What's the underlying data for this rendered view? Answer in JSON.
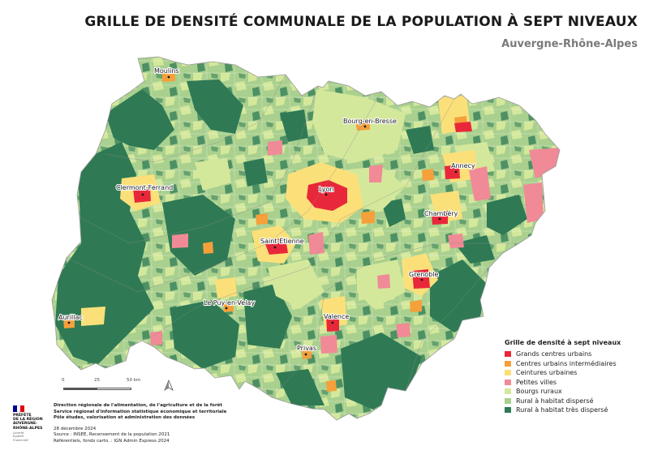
{
  "title": "GRILLE DE DENSITÉ COMMUNALE DE LA POPULATION À SEPT NIVEAUX",
  "subtitle": "Auvergne-Rhône-Alpes",
  "cities": {
    "moulins": "Moulins",
    "bourg": "Bourg-en-Bresse",
    "annecy": "Annecy",
    "clermont": "Clermont-Ferrand",
    "lyon": "Lyon",
    "chambery": "Chambéry",
    "saint_etienne": "Saint-Étienne",
    "grenoble": "Grenoble",
    "le_puy": "Le Puy-en-Velay",
    "valence": "Valence",
    "aurillac": "Aurillac",
    "privas": "Privas"
  },
  "legend": {
    "title": "Grille de densité à sept niveaux",
    "items": [
      {
        "label": "Grands centres urbains",
        "color": "#e8283a"
      },
      {
        "label": "Centres urbains intermédiaires",
        "color": "#f5a03a"
      },
      {
        "label": "Ceintures urbaines",
        "color": "#fbe07a"
      },
      {
        "label": "Petites villes",
        "color": "#f08a96"
      },
      {
        "label": "Bourgs ruraux",
        "color": "#d4e89c"
      },
      {
        "label": "Rural à habitat dispersé",
        "color": "#a9d08e"
      },
      {
        "label": "Rural à habitat très dispersé",
        "color": "#2f7a55"
      }
    ]
  },
  "scale": {
    "zero": "0",
    "mid": "25",
    "end": "50 km"
  },
  "credits": {
    "line1": "Direction régionale de l'alimentation, de l'agriculture et de la forêt",
    "line2": "Service régional d'information statistique économique et territoriale",
    "line3": "Pôle études, valorisation et administration des données",
    "date": "28 décembre 2024",
    "source": "Source : INSEE, Recensement de la population 2021",
    "refs": "Référentiels, fonds carto. : IGN Admin Express 2024"
  },
  "logo": {
    "line1": "PRÉFÈTE",
    "line2": "DE LA RÉGION",
    "line3": "AUVERGNE-",
    "line4": "RHÔNE-ALPES",
    "motto1": "Liberté",
    "motto2": "Égalité",
    "motto3": "Fraternité"
  },
  "colors": {
    "flag_blue": "#000091",
    "flag_red": "#e1000f"
  }
}
